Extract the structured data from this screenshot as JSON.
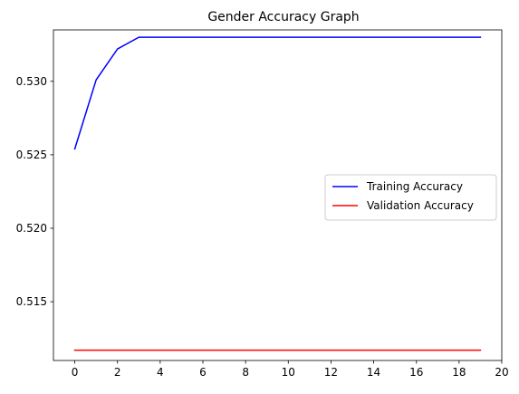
{
  "chart_data": {
    "type": "line",
    "title": "Gender Accuracy Graph",
    "xlabel": "",
    "ylabel": "",
    "xlim": [
      -1,
      20
    ],
    "ylim": [
      0.511,
      0.5335
    ],
    "x_ticks": [
      0,
      2,
      4,
      6,
      8,
      10,
      12,
      14,
      16,
      18,
      20
    ],
    "y_ticks": [
      0.515,
      0.52,
      0.525,
      0.53
    ],
    "y_tick_labels": [
      "0.515",
      "0.520",
      "0.525",
      "0.530"
    ],
    "grid": false,
    "legend_position": "center-right",
    "x": [
      0,
      1,
      2,
      3,
      4,
      5,
      6,
      7,
      8,
      9,
      10,
      11,
      12,
      13,
      14,
      15,
      16,
      17,
      18,
      19
    ],
    "series": [
      {
        "name": "Training Accuracy",
        "color": "#0000ff",
        "values": [
          0.5254,
          0.5301,
          0.5322,
          0.533,
          0.533,
          0.533,
          0.533,
          0.533,
          0.533,
          0.533,
          0.533,
          0.533,
          0.533,
          0.533,
          0.533,
          0.533,
          0.533,
          0.533,
          0.533,
          0.533
        ]
      },
      {
        "name": "Validation Accuracy",
        "color": "#ff0000",
        "values": [
          0.5117,
          0.5117,
          0.5117,
          0.5117,
          0.5117,
          0.5117,
          0.5117,
          0.5117,
          0.5117,
          0.5117,
          0.5117,
          0.5117,
          0.5117,
          0.5117,
          0.5117,
          0.5117,
          0.5117,
          0.5117,
          0.5117,
          0.5117
        ]
      }
    ]
  }
}
